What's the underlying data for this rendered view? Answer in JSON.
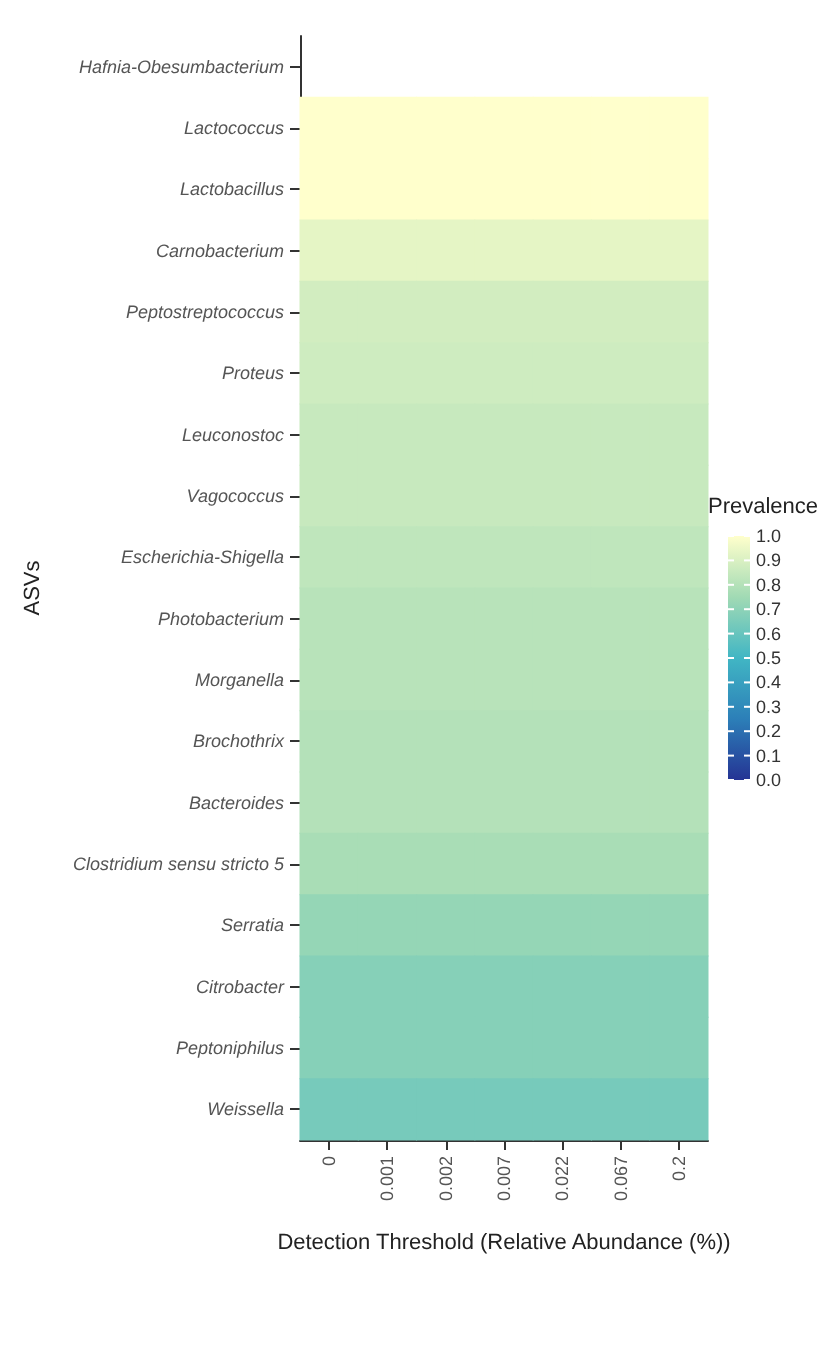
{
  "chart_data": {
    "type": "heatmap",
    "xlabel": "Detection Threshold (Relative Abundance (%))",
    "ylabel": "ASVs",
    "clabel": "Prevalence",
    "categories": [
      "0",
      "0.001",
      "0.002",
      "0.007",
      "0.022",
      "0.067",
      "0.2"
    ],
    "y_categories": [
      "Hafnia-Obesumbacterium",
      "Lactococcus",
      "Lactobacillus",
      "Carnobacterium",
      "Peptostreptococcus",
      "Proteus",
      "Leuconostoc",
      "Vagococcus",
      "Escherichia-Shigella",
      "Photobacterium",
      "Morganella",
      "Brochothrix",
      "Bacteroides",
      "Clostridium sensu stricto 5",
      "Serratia",
      "Citrobacter",
      "Peptoniphilus",
      "Weissella"
    ],
    "cells": [
      [
        null,
        null,
        null,
        null,
        null,
        null,
        null
      ],
      [
        1.0,
        1.0,
        1.0,
        1.0,
        1.0,
        1.0,
        1.0
      ],
      [
        1.0,
        1.0,
        1.0,
        1.0,
        1.0,
        1.0,
        1.0
      ],
      [
        0.93,
        0.93,
        0.93,
        0.93,
        0.93,
        0.93,
        0.93
      ],
      [
        0.88,
        0.88,
        0.88,
        0.88,
        0.88,
        0.88,
        0.88
      ],
      [
        0.87,
        0.87,
        0.87,
        0.87,
        0.87,
        0.87,
        0.87
      ],
      [
        0.85,
        0.85,
        0.85,
        0.85,
        0.85,
        0.85,
        0.85
      ],
      [
        0.85,
        0.85,
        0.85,
        0.85,
        0.85,
        0.85,
        0.85
      ],
      [
        0.83,
        0.83,
        0.83,
        0.83,
        0.83,
        0.83,
        0.83
      ],
      [
        0.81,
        0.81,
        0.81,
        0.81,
        0.81,
        0.81,
        0.81
      ],
      [
        0.81,
        0.81,
        0.81,
        0.81,
        0.81,
        0.81,
        0.81
      ],
      [
        0.8,
        0.8,
        0.8,
        0.8,
        0.8,
        0.8,
        0.8
      ],
      [
        0.8,
        0.8,
        0.8,
        0.8,
        0.8,
        0.8,
        0.8
      ],
      [
        0.77,
        0.77,
        0.77,
        0.77,
        0.77,
        0.77,
        0.77
      ],
      [
        0.72,
        0.72,
        0.72,
        0.72,
        0.72,
        0.72,
        0.72
      ],
      [
        0.68,
        0.68,
        0.68,
        0.68,
        0.68,
        0.68,
        0.68
      ],
      [
        0.68,
        0.68,
        0.68,
        0.68,
        0.68,
        0.68,
        0.68
      ],
      [
        0.64,
        0.64,
        0.64,
        0.64,
        0.64,
        0.64,
        0.64
      ]
    ],
    "clim": [
      0.0,
      1.0
    ],
    "cticks": [
      {
        "value": 0,
        "label": "0.0"
      },
      {
        "value": 0.1,
        "label": "0.1"
      },
      {
        "value": 0.2,
        "label": "0.2"
      },
      {
        "value": 0.3,
        "label": "0.3"
      },
      {
        "value": 0.4,
        "label": "0.4"
      },
      {
        "value": 0.5,
        "label": "0.5"
      },
      {
        "value": 0.6,
        "label": "0.6"
      },
      {
        "value": 0.7,
        "label": "0.7"
      },
      {
        "value": 0.8,
        "label": "0.8"
      },
      {
        "value": 0.9,
        "label": "0.9"
      },
      {
        "value": 1,
        "label": "1.0"
      }
    ]
  }
}
